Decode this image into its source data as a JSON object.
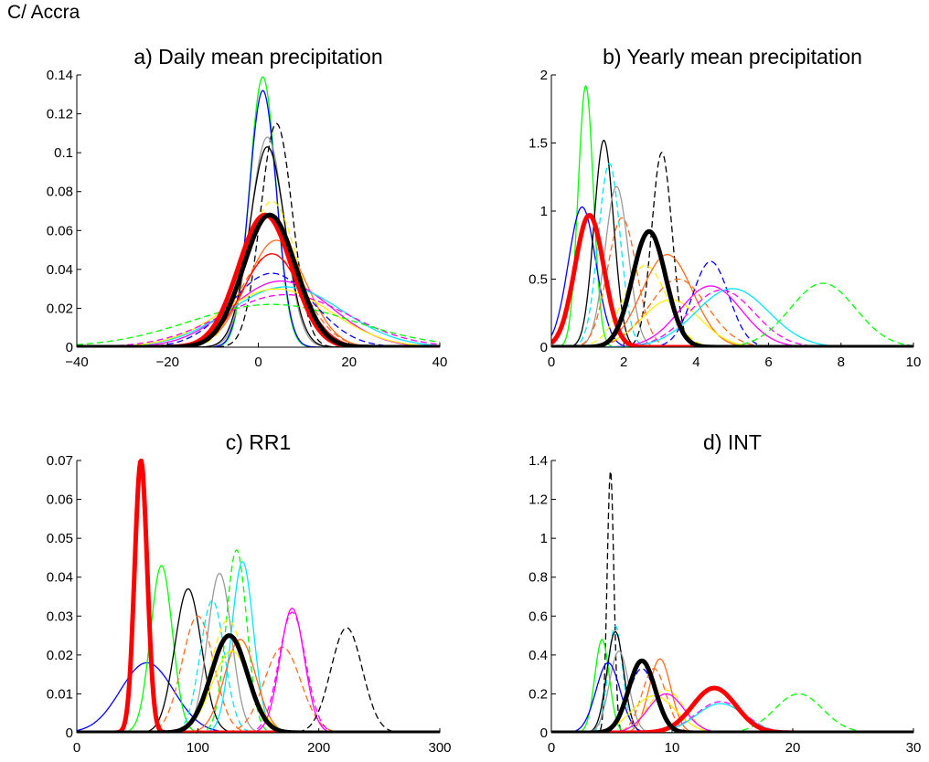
{
  "figure_title": "C/ Accra",
  "colors": {
    "green": "#00ff00",
    "blue": "#0000ff",
    "black": "#000000",
    "gray": "#999999",
    "cyan": "#00e5ff",
    "yellow": "#ffee00",
    "orange": "#ff6a1a",
    "red": "#ff0000",
    "magenta": "#ff00ff"
  },
  "chart_data": [
    {
      "type": "line",
      "title": "a) Daily mean precipitation",
      "xlim": [
        -40,
        40
      ],
      "ylim": [
        0,
        0.14
      ],
      "xticks": [
        "−40",
        "−20",
        "0",
        "20",
        "40"
      ],
      "yticks": [
        "0",
        "0.02",
        "0.04",
        "0.06",
        "0.08",
        "0.1",
        "0.12",
        "0.14"
      ],
      "series": [
        {
          "color": "green",
          "style": "solid",
          "width": 1.3,
          "mu": 1.0,
          "sigma": 2.9,
          "peak": 0.139
        },
        {
          "color": "blue",
          "style": "solid",
          "width": 1.3,
          "mu": 1.0,
          "sigma": 3.0,
          "peak": 0.132
        },
        {
          "color": "black",
          "style": "dashed",
          "width": 1.3,
          "mu": 4.0,
          "sigma": 3.5,
          "peak": 0.115
        },
        {
          "color": "gray",
          "style": "solid",
          "width": 1.3,
          "mu": 2.0,
          "sigma": 3.7,
          "peak": 0.108
        },
        {
          "color": "black",
          "style": "solid",
          "width": 1.3,
          "mu": 2.0,
          "sigma": 3.9,
          "peak": 0.103
        },
        {
          "color": "yellow",
          "style": "dashed",
          "width": 1.3,
          "mu": 3.0,
          "sigma": 5.5,
          "peak": 0.075
        },
        {
          "color": "orange",
          "style": "solid",
          "width": 1.3,
          "mu": 4.0,
          "sigma": 6.5,
          "peak": 0.055
        },
        {
          "color": "orange",
          "style": "dashed",
          "width": 1.3,
          "mu": 3.0,
          "sigma": 7.0,
          "peak": 0.048
        },
        {
          "color": "blue",
          "style": "dashed",
          "width": 1.3,
          "mu": 3.0,
          "sigma": 9.0,
          "peak": 0.038
        },
        {
          "color": "magenta",
          "style": "solid",
          "width": 1.3,
          "mu": 5.0,
          "sigma": 11.0,
          "peak": 0.034
        },
        {
          "color": "cyan",
          "style": "solid",
          "width": 1.3,
          "mu": 6.0,
          "sigma": 12.5,
          "peak": 0.031
        },
        {
          "color": "yellow",
          "style": "solid",
          "width": 1.3,
          "mu": 4.0,
          "sigma": 12.0,
          "peak": 0.03
        },
        {
          "color": "magenta",
          "style": "dashed",
          "width": 1.3,
          "mu": 6.0,
          "sigma": 14.0,
          "peak": 0.027
        },
        {
          "color": "green",
          "style": "dashed",
          "width": 1.3,
          "mu": 3.0,
          "sigma": 18.0,
          "peak": 0.022
        },
        {
          "color": "red",
          "style": "solid",
          "width": 1.3,
          "mu": 3.0,
          "sigma": 6.5,
          "peak": 0.048
        },
        {
          "color": "red",
          "style": "solid",
          "width": 5,
          "mu": 1.5,
          "sigma": 5.9,
          "peak": 0.068
        },
        {
          "color": "black",
          "style": "solid",
          "width": 5,
          "mu": 2.5,
          "sigma": 5.8,
          "peak": 0.068
        }
      ]
    },
    {
      "type": "line",
      "title": "b) Yearly mean precipitation",
      "xlim": [
        0,
        10
      ],
      "ylim": [
        0,
        2
      ],
      "xticks": [
        "0",
        "2",
        "4",
        "6",
        "8",
        "10"
      ],
      "yticks": [
        "0",
        "0.5",
        "1",
        "1.5",
        "2"
      ],
      "series": [
        {
          "color": "green",
          "style": "solid",
          "width": 1.3,
          "mu": 0.95,
          "sigma": 0.21,
          "peak": 1.92
        },
        {
          "color": "blue",
          "style": "solid",
          "width": 1.3,
          "mu": 0.85,
          "sigma": 0.38,
          "peak": 1.03
        },
        {
          "color": "black",
          "style": "solid",
          "width": 1.3,
          "mu": 1.45,
          "sigma": 0.27,
          "peak": 1.52
        },
        {
          "color": "cyan",
          "style": "dashed",
          "width": 1.3,
          "mu": 1.6,
          "sigma": 0.3,
          "peak": 1.35
        },
        {
          "color": "gray",
          "style": "solid",
          "width": 1.3,
          "mu": 1.8,
          "sigma": 0.32,
          "peak": 1.18
        },
        {
          "color": "orange",
          "style": "dashed",
          "width": 1.3,
          "mu": 1.95,
          "sigma": 0.4,
          "peak": 0.95
        },
        {
          "color": "black",
          "style": "dashed",
          "width": 1.3,
          "mu": 3.05,
          "sigma": 0.28,
          "peak": 1.43
        },
        {
          "color": "yellow",
          "style": "dashed",
          "width": 1.3,
          "mu": 2.6,
          "sigma": 0.6,
          "peak": 0.6
        },
        {
          "color": "orange",
          "style": "solid",
          "width": 1.3,
          "mu": 3.2,
          "sigma": 0.7,
          "peak": 0.68
        },
        {
          "color": "yellow",
          "style": "solid",
          "width": 1.3,
          "mu": 3.3,
          "sigma": 0.8,
          "peak": 0.35
        },
        {
          "color": "orange",
          "style": "dashed",
          "width": 1.3,
          "mu": 3.5,
          "sigma": 0.8,
          "peak": 0.5
        },
        {
          "color": "blue",
          "style": "dashed",
          "width": 1.3,
          "mu": 4.4,
          "sigma": 0.5,
          "peak": 0.63
        },
        {
          "color": "magenta",
          "style": "solid",
          "width": 1.3,
          "mu": 4.4,
          "sigma": 0.85,
          "peak": 0.45
        },
        {
          "color": "magenta",
          "style": "dashed",
          "width": 1.3,
          "mu": 4.7,
          "sigma": 0.9,
          "peak": 0.42
        },
        {
          "color": "cyan",
          "style": "solid",
          "width": 1.3,
          "mu": 5.0,
          "sigma": 1.0,
          "peak": 0.43
        },
        {
          "color": "green",
          "style": "dashed",
          "width": 1.3,
          "mu": 7.5,
          "sigma": 0.9,
          "peak": 0.47
        },
        {
          "color": "red",
          "style": "solid",
          "width": 5,
          "mu": 1.05,
          "sigma": 0.4,
          "peak": 0.97
        },
        {
          "color": "black",
          "style": "solid",
          "width": 5,
          "mu": 2.7,
          "sigma": 0.46,
          "peak": 0.85
        }
      ]
    },
    {
      "type": "line",
      "title": "c) RR1",
      "xlim": [
        0,
        300
      ],
      "ylim": [
        0,
        0.07
      ],
      "xticks": [
        "0",
        "100",
        "200",
        "300"
      ],
      "yticks": [
        "0",
        "0.01",
        "0.02",
        "0.03",
        "0.04",
        "0.05",
        "0.06",
        "0.07"
      ],
      "series": [
        {
          "color": "blue",
          "style": "solid",
          "width": 1.3,
          "mu": 58,
          "sigma": 22,
          "peak": 0.018
        },
        {
          "color": "green",
          "style": "solid",
          "width": 1.3,
          "mu": 70,
          "sigma": 9,
          "peak": 0.043
        },
        {
          "color": "black",
          "style": "solid",
          "width": 1.3,
          "mu": 92,
          "sigma": 11,
          "peak": 0.037
        },
        {
          "color": "orange",
          "style": "dashed",
          "width": 1.3,
          "mu": 100,
          "sigma": 13,
          "peak": 0.03
        },
        {
          "color": "cyan",
          "style": "dashed",
          "width": 1.3,
          "mu": 112,
          "sigma": 10,
          "peak": 0.034
        },
        {
          "color": "gray",
          "style": "solid",
          "width": 1.3,
          "mu": 118,
          "sigma": 10,
          "peak": 0.041
        },
        {
          "color": "green",
          "style": "dashed",
          "width": 1.3,
          "mu": 132,
          "sigma": 8.5,
          "peak": 0.047
        },
        {
          "color": "cyan",
          "style": "solid",
          "width": 1.3,
          "mu": 137,
          "sigma": 9,
          "peak": 0.044
        },
        {
          "color": "yellow",
          "style": "dashed",
          "width": 1.3,
          "mu": 125,
          "sigma": 14,
          "peak": 0.029
        },
        {
          "color": "orange",
          "style": "solid",
          "width": 1.3,
          "mu": 135,
          "sigma": 13,
          "peak": 0.024
        },
        {
          "color": "yellow",
          "style": "solid",
          "width": 1.3,
          "mu": 128,
          "sigma": 16,
          "peak": 0.021
        },
        {
          "color": "orange",
          "style": "dashed",
          "width": 1.3,
          "mu": 170,
          "sigma": 15,
          "peak": 0.022
        },
        {
          "color": "magenta",
          "style": "solid",
          "width": 1.3,
          "mu": 178,
          "sigma": 10,
          "peak": 0.032
        },
        {
          "color": "magenta",
          "style": "dashed",
          "width": 1.3,
          "mu": 178,
          "sigma": 11,
          "peak": 0.031
        },
        {
          "color": "black",
          "style": "dashed",
          "width": 1.3,
          "mu": 223,
          "sigma": 13,
          "peak": 0.027
        },
        {
          "color": "red",
          "style": "solid",
          "width": 5,
          "mu": 53,
          "sigma": 5.2,
          "peak": 0.07
        },
        {
          "color": "black",
          "style": "solid",
          "width": 5,
          "mu": 126,
          "sigma": 15,
          "peak": 0.025
        }
      ]
    },
    {
      "type": "line",
      "title": "d) INT",
      "xlim": [
        0,
        30
      ],
      "ylim": [
        0,
        1.4
      ],
      "xticks": [
        "0",
        "10",
        "20",
        "30"
      ],
      "yticks": [
        "0",
        "0.2",
        "0.4",
        "0.6",
        "0.8",
        "1",
        "1.2",
        "1.4"
      ],
      "series": [
        {
          "color": "black",
          "style": "dashed",
          "width": 1.3,
          "mu": 4.9,
          "sigma": 0.28,
          "peak": 1.35
        },
        {
          "color": "cyan",
          "style": "dashed",
          "width": 1.3,
          "mu": 5.3,
          "sigma": 0.6,
          "peak": 0.55
        },
        {
          "color": "green",
          "style": "solid",
          "width": 1.3,
          "mu": 4.2,
          "sigma": 0.6,
          "peak": 0.48
        },
        {
          "color": "black",
          "style": "solid",
          "width": 1.3,
          "mu": 5.3,
          "sigma": 0.7,
          "peak": 0.52
        },
        {
          "color": "gray",
          "style": "solid",
          "width": 1.3,
          "mu": 5.6,
          "sigma": 0.8,
          "peak": 0.42
        },
        {
          "color": "blue",
          "style": "solid",
          "width": 1.3,
          "mu": 4.7,
          "sigma": 1.0,
          "peak": 0.36
        },
        {
          "color": "blue",
          "style": "dashed",
          "width": 1.3,
          "mu": 7.5,
          "sigma": 1.1,
          "peak": 0.33
        },
        {
          "color": "orange",
          "style": "solid",
          "width": 1.3,
          "mu": 9.0,
          "sigma": 0.9,
          "peak": 0.38
        },
        {
          "color": "orange",
          "style": "dashed",
          "width": 1.3,
          "mu": 8.5,
          "sigma": 1.0,
          "peak": 0.33
        },
        {
          "color": "yellow",
          "style": "dashed",
          "width": 1.3,
          "mu": 9.5,
          "sigma": 1.5,
          "peak": 0.22
        },
        {
          "color": "yellow",
          "style": "solid",
          "width": 1.3,
          "mu": 8.5,
          "sigma": 1.8,
          "peak": 0.19
        },
        {
          "color": "magenta",
          "style": "solid",
          "width": 1.3,
          "mu": 9.5,
          "sigma": 1.5,
          "peak": 0.2
        },
        {
          "color": "magenta",
          "style": "dashed",
          "width": 1.3,
          "mu": 14.0,
          "sigma": 2.0,
          "peak": 0.16
        },
        {
          "color": "cyan",
          "style": "solid",
          "width": 1.3,
          "mu": 14.0,
          "sigma": 2.0,
          "peak": 0.15
        },
        {
          "color": "green",
          "style": "dashed",
          "width": 1.3,
          "mu": 20.5,
          "sigma": 2.0,
          "peak": 0.2
        },
        {
          "color": "red",
          "style": "solid",
          "width": 5,
          "mu": 13.5,
          "sigma": 1.8,
          "peak": 0.23
        },
        {
          "color": "black",
          "style": "solid",
          "width": 5,
          "mu": 7.5,
          "sigma": 1.1,
          "peak": 0.37
        }
      ]
    }
  ]
}
